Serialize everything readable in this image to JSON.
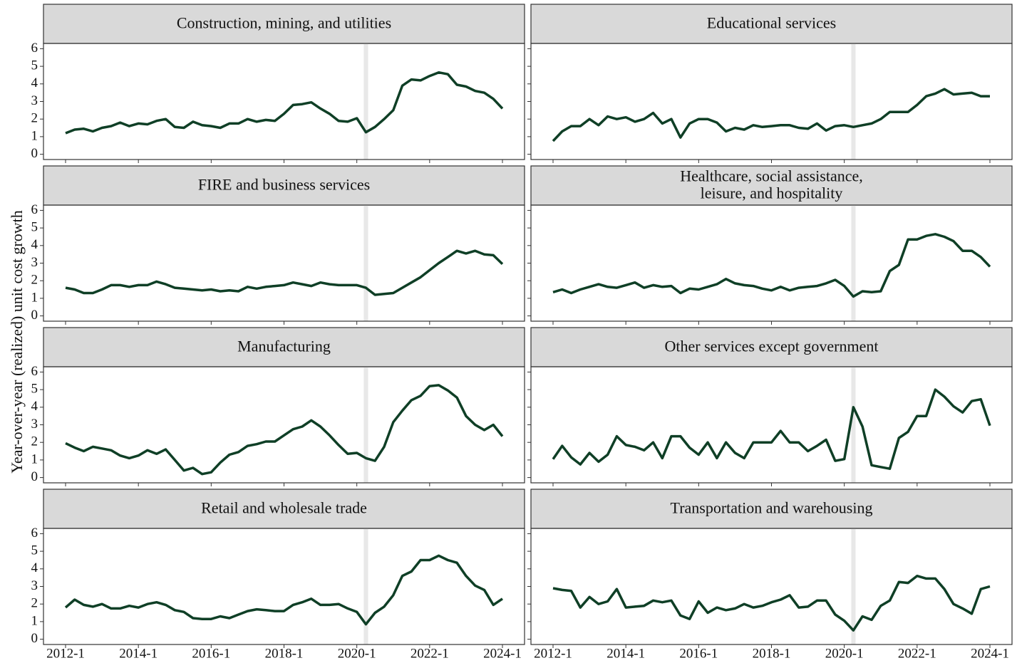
{
  "chart_data": {
    "type": "line",
    "facets": true,
    "ylabel": "Year-over-year (realized) unit cost growth",
    "x": [
      "2012-1",
      "2012-2",
      "2012-3",
      "2012-4",
      "2013-1",
      "2013-2",
      "2013-3",
      "2013-4",
      "2014-1",
      "2014-2",
      "2014-3",
      "2014-4",
      "2015-1",
      "2015-2",
      "2015-3",
      "2015-4",
      "2016-1",
      "2016-2",
      "2016-3",
      "2016-4",
      "2017-1",
      "2017-2",
      "2017-3",
      "2017-4",
      "2018-1",
      "2018-2",
      "2018-3",
      "2018-4",
      "2019-1",
      "2019-2",
      "2019-3",
      "2019-4",
      "2020-1",
      "2020-2",
      "2020-3",
      "2020-4",
      "2021-1",
      "2021-2",
      "2021-3",
      "2021-4",
      "2022-1",
      "2022-2",
      "2022-3",
      "2022-4",
      "2023-1",
      "2023-2",
      "2023-3",
      "2023-4",
      "2024-1"
    ],
    "xticks": [
      "2012-1",
      "2014-1",
      "2016-1",
      "2018-1",
      "2020-1",
      "2022-1",
      "2024-1"
    ],
    "highlight_x": "2020-2",
    "ylim": [
      -0.3,
      6.3
    ],
    "yticks": [
      0,
      1,
      2,
      3,
      4,
      5,
      6
    ],
    "color": "#0f3f26",
    "series": [
      {
        "name": "Construction, mining, and utilities",
        "values": [
          1.2,
          1.4,
          1.45,
          1.3,
          1.5,
          1.6,
          1.8,
          1.6,
          1.75,
          1.7,
          1.9,
          2.0,
          1.55,
          1.5,
          1.85,
          1.65,
          1.6,
          1.5,
          1.75,
          1.75,
          2.0,
          1.85,
          1.95,
          1.9,
          2.3,
          2.8,
          2.85,
          2.95,
          2.6,
          2.3,
          1.9,
          1.85,
          2.05,
          1.25,
          1.55,
          2.0,
          2.5,
          3.9,
          4.25,
          4.2,
          4.45,
          4.65,
          4.55,
          3.95,
          3.85,
          3.6,
          3.5,
          3.15,
          2.6
        ]
      },
      {
        "name": "Educational services",
        "values": [
          0.75,
          1.3,
          1.6,
          1.6,
          2.0,
          1.65,
          2.15,
          2.0,
          2.1,
          1.85,
          2.0,
          2.35,
          1.75,
          2.0,
          0.95,
          1.75,
          2.0,
          2.0,
          1.8,
          1.3,
          1.5,
          1.4,
          1.65,
          1.55,
          1.6,
          1.65,
          1.65,
          1.5,
          1.45,
          1.75,
          1.35,
          1.6,
          1.65,
          1.55,
          1.65,
          1.75,
          2.0,
          2.4,
          2.4,
          2.4,
          2.8,
          3.3,
          3.45,
          3.7,
          3.4,
          3.45,
          3.5,
          3.3,
          3.3
        ]
      },
      {
        "name": "FIRE and business services",
        "values": [
          1.6,
          1.5,
          1.3,
          1.3,
          1.5,
          1.75,
          1.75,
          1.65,
          1.75,
          1.75,
          1.95,
          1.8,
          1.6,
          1.55,
          1.5,
          1.45,
          1.5,
          1.4,
          1.45,
          1.4,
          1.65,
          1.55,
          1.65,
          1.7,
          1.75,
          1.9,
          1.8,
          1.7,
          1.9,
          1.8,
          1.75,
          1.75,
          1.75,
          1.6,
          1.2,
          1.25,
          1.3,
          1.6,
          1.9,
          2.2,
          2.6,
          3.0,
          3.35,
          3.7,
          3.55,
          3.7,
          3.5,
          3.45,
          2.95
        ]
      },
      {
        "name": "Healthcare, social assistance,\nleisure, and hospitality",
        "values": [
          1.35,
          1.5,
          1.3,
          1.5,
          1.65,
          1.8,
          1.65,
          1.6,
          1.75,
          1.9,
          1.6,
          1.75,
          1.65,
          1.7,
          1.3,
          1.55,
          1.5,
          1.65,
          1.8,
          2.1,
          1.85,
          1.75,
          1.7,
          1.55,
          1.45,
          1.65,
          1.45,
          1.6,
          1.65,
          1.7,
          1.85,
          2.05,
          1.7,
          1.1,
          1.4,
          1.35,
          1.4,
          2.55,
          2.9,
          4.35,
          4.35,
          4.55,
          4.65,
          4.5,
          4.25,
          3.7,
          3.7,
          3.35,
          2.8
        ]
      },
      {
        "name": "Manufacturing",
        "values": [
          1.95,
          1.7,
          1.5,
          1.75,
          1.65,
          1.55,
          1.25,
          1.1,
          1.25,
          1.55,
          1.35,
          1.6,
          1.0,
          0.4,
          0.55,
          0.2,
          0.3,
          0.85,
          1.3,
          1.45,
          1.8,
          1.9,
          2.05,
          2.05,
          2.4,
          2.75,
          2.9,
          3.25,
          2.9,
          2.4,
          1.85,
          1.35,
          1.4,
          1.1,
          0.95,
          1.75,
          3.15,
          3.8,
          4.4,
          4.65,
          5.2,
          5.25,
          4.95,
          4.55,
          3.5,
          3.0,
          2.7,
          3.0,
          2.35
        ]
      },
      {
        "name": "Other services except government",
        "values": [
          1.05,
          1.8,
          1.15,
          0.75,
          1.4,
          0.9,
          1.3,
          2.35,
          1.85,
          1.75,
          1.55,
          2.0,
          1.1,
          2.35,
          2.35,
          1.7,
          1.3,
          2.0,
          1.1,
          2.0,
          1.4,
          1.1,
          2.0,
          2.0,
          2.0,
          2.65,
          2.0,
          2.0,
          1.5,
          1.8,
          2.15,
          0.95,
          1.05,
          4.0,
          2.9,
          0.7,
          0.6,
          0.5,
          2.25,
          2.6,
          3.5,
          3.5,
          5.0,
          4.6,
          4.05,
          3.7,
          4.35,
          4.45,
          2.95
        ]
      },
      {
        "name": "Retail and wholesale trade",
        "values": [
          1.8,
          2.25,
          1.95,
          1.85,
          2.0,
          1.75,
          1.75,
          1.9,
          1.8,
          2.0,
          2.1,
          1.95,
          1.65,
          1.55,
          1.2,
          1.15,
          1.15,
          1.3,
          1.2,
          1.4,
          1.6,
          1.7,
          1.65,
          1.6,
          1.6,
          1.95,
          2.1,
          2.3,
          1.95,
          1.95,
          2.0,
          1.75,
          1.55,
          0.85,
          1.5,
          1.85,
          2.5,
          3.6,
          3.85,
          4.5,
          4.5,
          4.75,
          4.5,
          4.35,
          3.6,
          3.05,
          2.8,
          1.95,
          2.3
        ]
      },
      {
        "name": "Transportation and warehousing",
        "values": [
          2.9,
          2.8,
          2.75,
          1.8,
          2.4,
          2.0,
          2.15,
          2.85,
          1.8,
          1.85,
          1.9,
          2.2,
          2.1,
          2.2,
          1.35,
          1.15,
          2.15,
          1.5,
          1.8,
          1.65,
          1.75,
          2.0,
          1.8,
          1.9,
          2.1,
          2.25,
          2.5,
          1.8,
          1.85,
          2.2,
          2.2,
          1.4,
          1.05,
          0.5,
          1.3,
          1.1,
          1.9,
          2.2,
          3.25,
          3.2,
          3.6,
          3.45,
          3.45,
          2.85,
          2.0,
          1.75,
          1.45,
          2.85,
          3.0
        ]
      }
    ]
  }
}
